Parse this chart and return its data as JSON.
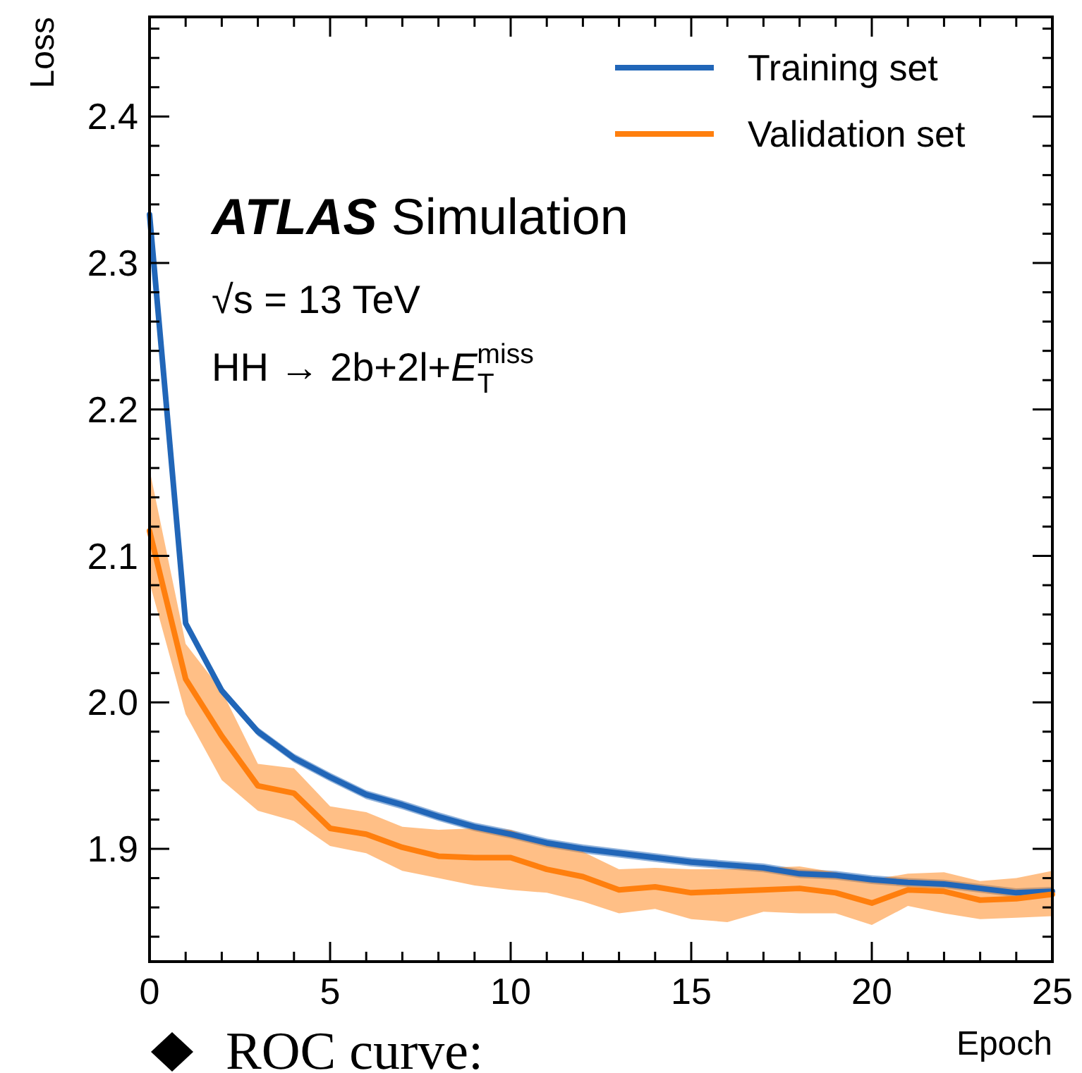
{
  "chart_data": {
    "type": "line",
    "xlabel": "Epoch",
    "ylabel": "Loss",
    "x": [
      0,
      1,
      2,
      3,
      4,
      5,
      6,
      7,
      8,
      9,
      10,
      11,
      12,
      13,
      14,
      15,
      16,
      17,
      18,
      19,
      20,
      21,
      22,
      23,
      24,
      25
    ],
    "series": [
      {
        "name": "Training set",
        "color": "#2166b8",
        "values": [
          2.333,
          2.054,
          2.008,
          1.98,
          1.962,
          1.949,
          1.937,
          1.93,
          1.922,
          1.915,
          1.91,
          1.904,
          1.9,
          1.897,
          1.894,
          1.891,
          1.889,
          1.887,
          1.883,
          1.882,
          1.879,
          1.877,
          1.876,
          1.873,
          1.87,
          1.871
        ],
        "lower": [
          2.33,
          2.051,
          2.005,
          1.977,
          1.959,
          1.946,
          1.934,
          1.927,
          1.919,
          1.912,
          1.907,
          1.901,
          1.897,
          1.894,
          1.891,
          1.888,
          1.886,
          1.884,
          1.88,
          1.879,
          1.876,
          1.874,
          1.873,
          1.87,
          1.867,
          1.868
        ],
        "upper": [
          2.336,
          2.057,
          2.011,
          1.983,
          1.965,
          1.952,
          1.94,
          1.933,
          1.925,
          1.918,
          1.913,
          1.907,
          1.903,
          1.9,
          1.897,
          1.894,
          1.892,
          1.89,
          1.886,
          1.885,
          1.882,
          1.88,
          1.879,
          1.876,
          1.873,
          1.874
        ]
      },
      {
        "name": "Validation set",
        "color": "#ff7f0e",
        "values": [
          2.117,
          2.016,
          1.977,
          1.943,
          1.938,
          1.914,
          1.91,
          1.901,
          1.895,
          1.894,
          1.894,
          1.886,
          1.881,
          1.872,
          1.874,
          1.87,
          1.871,
          1.872,
          1.873,
          1.87,
          1.863,
          1.872,
          1.871,
          1.865,
          1.866,
          1.869
        ],
        "lower": [
          2.082,
          1.992,
          1.947,
          1.926,
          1.919,
          1.902,
          1.897,
          1.885,
          1.88,
          1.875,
          1.872,
          1.87,
          1.864,
          1.856,
          1.859,
          1.852,
          1.85,
          1.857,
          1.856,
          1.856,
          1.848,
          1.861,
          1.856,
          1.852,
          1.853,
          1.854
        ],
        "upper": [
          2.159,
          2.04,
          2.008,
          1.958,
          1.955,
          1.929,
          1.925,
          1.915,
          1.913,
          1.914,
          1.913,
          1.903,
          1.898,
          1.886,
          1.887,
          1.886,
          1.886,
          1.887,
          1.888,
          1.884,
          1.879,
          1.883,
          1.884,
          1.878,
          1.88,
          1.885
        ]
      }
    ],
    "xlim": [
      0,
      25
    ],
    "ylim": [
      1.823,
      2.468
    ],
    "xticks": [
      0,
      {
        "value": 1,
        "label": null
      },
      {
        "value": 2,
        "label": null
      },
      {
        "value": 3,
        "label": null
      },
      {
        "value": 4,
        "label": null
      },
      5,
      {
        "value": 6,
        "label": null
      },
      {
        "value": 7,
        "label": null
      },
      {
        "value": 8,
        "label": null
      },
      {
        "value": 9,
        "label": null
      },
      10,
      {
        "value": 11,
        "label": null
      },
      {
        "value": 12,
        "label": null
      },
      {
        "value": 13,
        "label": null
      },
      {
        "value": 14,
        "label": null
      },
      15,
      {
        "value": 16,
        "label": null
      },
      {
        "value": 17,
        "label": null
      },
      {
        "value": 18,
        "label": null
      },
      {
        "value": 19,
        "label": null
      },
      20,
      {
        "value": 21,
        "label": null
      },
      {
        "value": 22,
        "label": null
      },
      {
        "value": 23,
        "label": null
      },
      {
        "value": 24,
        "label": null
      },
      25
    ],
    "yticks": [
      {
        "value": 1.84,
        "label": null
      },
      {
        "value": 1.86,
        "label": null
      },
      {
        "value": 1.88,
        "label": null
      },
      1.9,
      {
        "value": 1.92,
        "label": null
      },
      {
        "value": 1.94,
        "label": null
      },
      {
        "value": 1.96,
        "label": null
      },
      {
        "value": 1.98,
        "label": null
      },
      {
        "value": 2.0,
        "label": "2.0"
      },
      {
        "value": 2.02,
        "label": null
      },
      {
        "value": 2.04,
        "label": null
      },
      {
        "value": 2.06,
        "label": null
      },
      {
        "value": 2.08,
        "label": null
      },
      2.1,
      {
        "value": 2.12,
        "label": null
      },
      {
        "value": 2.14,
        "label": null
      },
      {
        "value": 2.16,
        "label": null
      },
      {
        "value": 2.18,
        "label": null
      },
      2.2,
      {
        "value": 2.22,
        "label": null
      },
      {
        "value": 2.24,
        "label": null
      },
      {
        "value": 2.26,
        "label": null
      },
      {
        "value": 2.28,
        "label": null
      },
      2.3,
      {
        "value": 2.32,
        "label": null
      },
      {
        "value": 2.34,
        "label": null
      },
      {
        "value": 2.36,
        "label": null
      },
      {
        "value": 2.38,
        "label": null
      },
      2.4,
      {
        "value": 2.42,
        "label": null
      },
      {
        "value": 2.44,
        "label": null
      },
      {
        "value": 2.46,
        "label": null
      }
    ],
    "legend": "top right",
    "grid": false,
    "line_style": "solid",
    "marker": "none",
    "annotations": [
      "ATLAS Simulation",
      "√s = 13 TeV",
      "HH → 2b+2l+E$_{T}$$^{miss}$",
      "ROC curve:"
    ]
  }
}
